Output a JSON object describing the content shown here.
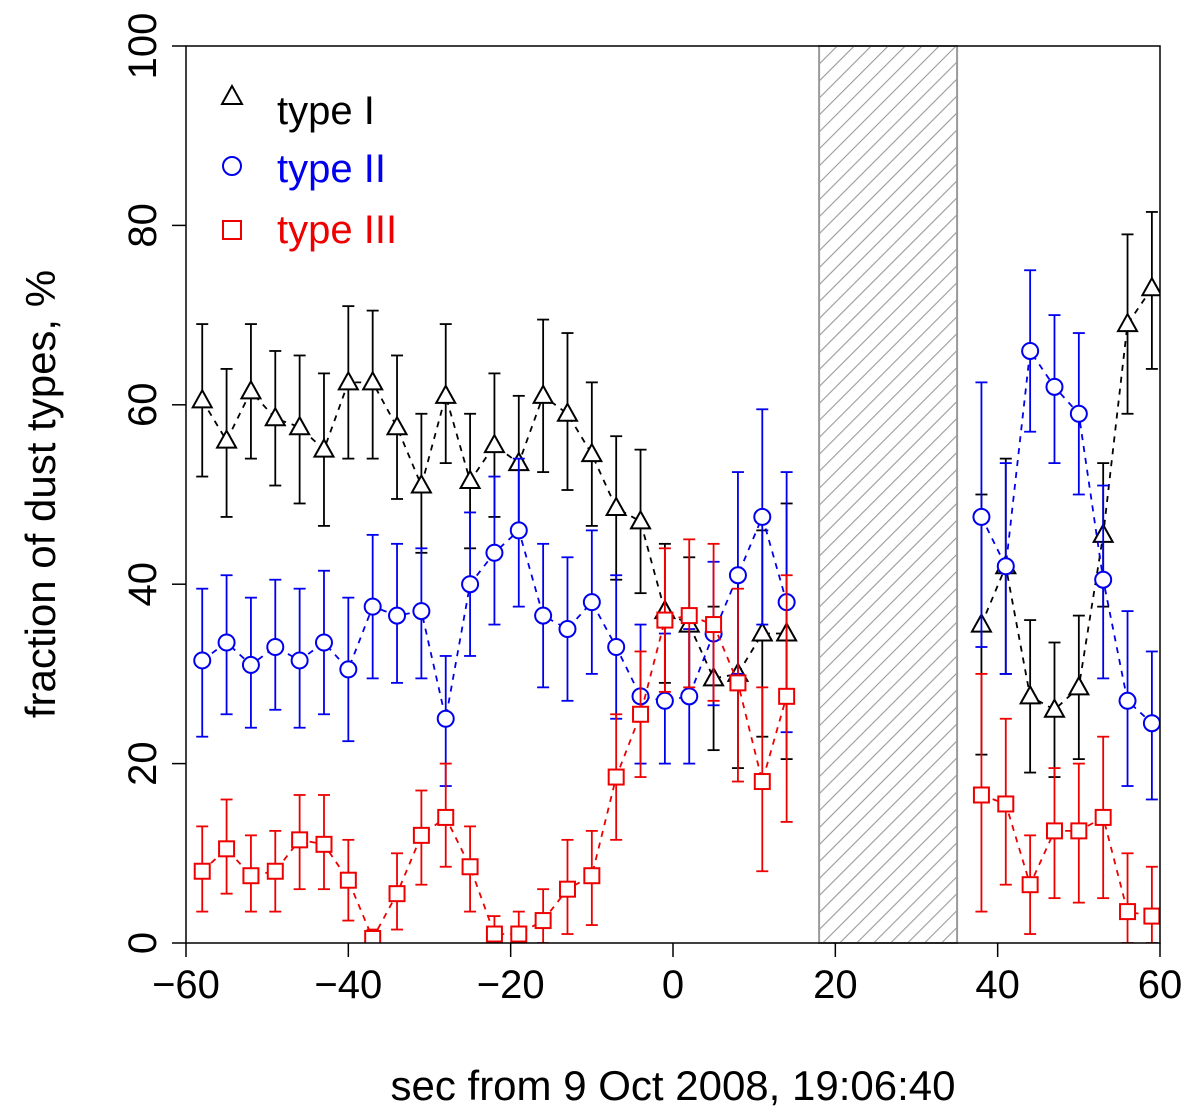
{
  "chart_data": {
    "type": "line",
    "title": "",
    "xlabel": "sec from 9 Oct 2008, 19:06:40",
    "ylabel": "fraction of dust types, %",
    "xlim": [
      -60,
      60
    ],
    "ylim": [
      0,
      100
    ],
    "xticks": [
      -60,
      -40,
      -20,
      0,
      20,
      40,
      60
    ],
    "xtick_labels": [
      "−60",
      "−40",
      "−20",
      "0",
      "20",
      "40",
      "60"
    ],
    "yticks": [
      0,
      20,
      40,
      60,
      80,
      100
    ],
    "ytick_labels": [
      "0",
      "20",
      "40",
      "60",
      "80",
      "100"
    ],
    "grid": false,
    "legend_position": "top-left",
    "shaded_region": {
      "x": [
        18,
        35
      ],
      "pattern": "diagonal-hatch"
    },
    "series": [
      {
        "name": "type I",
        "color": "#000000",
        "marker": "triangle",
        "line_style": "dashed",
        "points": [
          {
            "x": -58,
            "y": 60.5,
            "lo": 52.0,
            "hi": 69.0
          },
          {
            "x": -55,
            "y": 56.0,
            "lo": 47.5,
            "hi": 64.0
          },
          {
            "x": -52,
            "y": 61.5,
            "lo": 54.0,
            "hi": 69.0
          },
          {
            "x": -49,
            "y": 58.5,
            "lo": 51.0,
            "hi": 66.0
          },
          {
            "x": -46,
            "y": 57.5,
            "lo": 49.0,
            "hi": 65.5
          },
          {
            "x": -43,
            "y": 55.0,
            "lo": 46.5,
            "hi": 63.5
          },
          {
            "x": -40,
            "y": 62.5,
            "lo": 54.0,
            "hi": 71.0
          },
          {
            "x": -37,
            "y": 62.5,
            "lo": 54.0,
            "hi": 70.5
          },
          {
            "x": -34,
            "y": 57.5,
            "lo": 49.5,
            "hi": 65.5
          },
          {
            "x": -31,
            "y": 51.0,
            "lo": 43.5,
            "hi": 59.0
          },
          {
            "x": -28,
            "y": 61.0,
            "lo": 53.5,
            "hi": 69.0
          },
          {
            "x": -25,
            "y": 51.5,
            "lo": 44.0,
            "hi": 59.0
          },
          {
            "x": -22,
            "y": 55.5,
            "lo": 47.5,
            "hi": 63.5
          },
          {
            "x": -19,
            "y": 53.5,
            "lo": 45.5,
            "hi": 61.0
          },
          {
            "x": -16,
            "y": 61.0,
            "lo": 52.5,
            "hi": 69.5
          },
          {
            "x": -13,
            "y": 59.0,
            "lo": 50.5,
            "hi": 68.0
          },
          {
            "x": -10,
            "y": 54.5,
            "lo": 46.5,
            "hi": 62.5
          },
          {
            "x": -7,
            "y": 48.5,
            "lo": 40.5,
            "hi": 56.5
          },
          {
            "x": -4,
            "y": 47.0,
            "lo": 39.0,
            "hi": 55.0
          },
          {
            "x": -1,
            "y": 37.0,
            "lo": 29.0,
            "hi": 44.5
          },
          {
            "x": 2,
            "y": 35.5,
            "lo": 28.0,
            "hi": 43.0
          },
          {
            "x": 5,
            "y": 29.5,
            "lo": 21.5,
            "hi": 37.5
          },
          {
            "x": 8,
            "y": 30.0,
            "lo": 19.5,
            "hi": 40.5
          },
          {
            "x": 11,
            "y": 34.5,
            "lo": 23.0,
            "hi": 46.0
          },
          {
            "x": 14,
            "y": 34.5,
            "lo": 20.5,
            "hi": 49.0
          },
          {
            "x": 38,
            "y": 35.5,
            "lo": 21.0,
            "hi": 50.0
          },
          {
            "x": 41,
            "y": 42.0,
            "lo": 30.0,
            "hi": 54.0
          },
          {
            "x": 44,
            "y": 27.5,
            "lo": 19.0,
            "hi": 36.0
          },
          {
            "x": 47,
            "y": 26.0,
            "lo": 18.5,
            "hi": 33.5
          },
          {
            "x": 50,
            "y": 28.5,
            "lo": 20.5,
            "hi": 36.5
          },
          {
            "x": 53,
            "y": 45.5,
            "lo": 37.5,
            "hi": 53.5
          },
          {
            "x": 56,
            "y": 69.0,
            "lo": 59.0,
            "hi": 79.0
          },
          {
            "x": 59,
            "y": 73.0,
            "lo": 64.0,
            "hi": 81.5
          }
        ]
      },
      {
        "name": "type II",
        "color": "#0000ee",
        "marker": "circle",
        "line_style": "dashed",
        "points": [
          {
            "x": -58,
            "y": 31.5,
            "lo": 23.0,
            "hi": 39.5
          },
          {
            "x": -55,
            "y": 33.5,
            "lo": 25.5,
            "hi": 41.0
          },
          {
            "x": -52,
            "y": 31.0,
            "lo": 24.0,
            "hi": 38.5
          },
          {
            "x": -49,
            "y": 33.0,
            "lo": 26.0,
            "hi": 40.5
          },
          {
            "x": -46,
            "y": 31.5,
            "lo": 24.0,
            "hi": 39.5
          },
          {
            "x": -43,
            "y": 33.5,
            "lo": 25.5,
            "hi": 41.5
          },
          {
            "x": -40,
            "y": 30.5,
            "lo": 22.5,
            "hi": 38.5
          },
          {
            "x": -37,
            "y": 37.5,
            "lo": 29.5,
            "hi": 45.5
          },
          {
            "x": -34,
            "y": 36.5,
            "lo": 29.0,
            "hi": 44.5
          },
          {
            "x": -31,
            "y": 37.0,
            "lo": 29.5,
            "hi": 44.0
          },
          {
            "x": -28,
            "y": 25.0,
            "lo": 17.5,
            "hi": 32.0
          },
          {
            "x": -25,
            "y": 40.0,
            "lo": 32.0,
            "hi": 48.0
          },
          {
            "x": -22,
            "y": 43.5,
            "lo": 35.5,
            "hi": 52.0
          },
          {
            "x": -19,
            "y": 46.0,
            "lo": 37.5,
            "hi": 54.0
          },
          {
            "x": -16,
            "y": 36.5,
            "lo": 28.5,
            "hi": 44.5
          },
          {
            "x": -13,
            "y": 35.0,
            "lo": 27.0,
            "hi": 43.0
          },
          {
            "x": -10,
            "y": 38.0,
            "lo": 30.0,
            "hi": 46.0
          },
          {
            "x": -7,
            "y": 33.0,
            "lo": 25.0,
            "hi": 41.0
          },
          {
            "x": -4,
            "y": 27.5,
            "lo": 20.0,
            "hi": 35.5
          },
          {
            "x": -1,
            "y": 27.0,
            "lo": 20.0,
            "hi": 34.5
          },
          {
            "x": 2,
            "y": 27.5,
            "lo": 20.0,
            "hi": 35.0
          },
          {
            "x": 5,
            "y": 34.5,
            "lo": 26.5,
            "hi": 42.5
          },
          {
            "x": 8,
            "y": 41.0,
            "lo": 30.0,
            "hi": 52.5
          },
          {
            "x": 11,
            "y": 47.5,
            "lo": 35.5,
            "hi": 59.5
          },
          {
            "x": 14,
            "y": 38.0,
            "lo": 23.5,
            "hi": 52.5
          },
          {
            "x": 38,
            "y": 47.5,
            "lo": 33.0,
            "hi": 62.5
          },
          {
            "x": 41,
            "y": 42.0,
            "lo": 30.0,
            "hi": 53.5
          },
          {
            "x": 44,
            "y": 66.0,
            "lo": 57.0,
            "hi": 75.0
          },
          {
            "x": 47,
            "y": 62.0,
            "lo": 53.5,
            "hi": 70.0
          },
          {
            "x": 50,
            "y": 59.0,
            "lo": 50.0,
            "hi": 68.0
          },
          {
            "x": 53,
            "y": 40.5,
            "lo": 29.5,
            "hi": 51.0
          },
          {
            "x": 56,
            "y": 27.0,
            "lo": 17.5,
            "hi": 37.0
          },
          {
            "x": 59,
            "y": 24.5,
            "lo": 16.0,
            "hi": 32.5
          }
        ]
      },
      {
        "name": "type III",
        "color": "#ee0000",
        "marker": "square",
        "line_style": "dashed",
        "points": [
          {
            "x": -58,
            "y": 8.0,
            "lo": 3.5,
            "hi": 13.0
          },
          {
            "x": -55,
            "y": 10.5,
            "lo": 5.5,
            "hi": 16.0
          },
          {
            "x": -52,
            "y": 7.5,
            "lo": 3.5,
            "hi": 12.0
          },
          {
            "x": -49,
            "y": 8.0,
            "lo": 3.5,
            "hi": 12.5
          },
          {
            "x": -46,
            "y": 11.5,
            "lo": 6.0,
            "hi": 16.5
          },
          {
            "x": -43,
            "y": 11.0,
            "lo": 6.0,
            "hi": 16.5
          },
          {
            "x": -40,
            "y": 7.0,
            "lo": 2.5,
            "hi": 11.5
          },
          {
            "x": -37,
            "y": 0.5,
            "lo": 0.0,
            "hi": 1.5
          },
          {
            "x": -34,
            "y": 5.5,
            "lo": 1.5,
            "hi": 10.0
          },
          {
            "x": -31,
            "y": 12.0,
            "lo": 6.5,
            "hi": 17.0
          },
          {
            "x": -28,
            "y": 14.0,
            "lo": 8.5,
            "hi": 20.0
          },
          {
            "x": -25,
            "y": 8.5,
            "lo": 3.5,
            "hi": 13.0
          },
          {
            "x": -22,
            "y": 1.0,
            "lo": 0.0,
            "hi": 3.0
          },
          {
            "x": -19,
            "y": 1.0,
            "lo": 0.0,
            "hi": 3.5
          },
          {
            "x": -16,
            "y": 2.5,
            "lo": 0.0,
            "hi": 6.0
          },
          {
            "x": -13,
            "y": 6.0,
            "lo": 1.0,
            "hi": 11.5
          },
          {
            "x": -10,
            "y": 7.5,
            "lo": 2.0,
            "hi": 12.5
          },
          {
            "x": -7,
            "y": 18.5,
            "lo": 11.5,
            "hi": 25.5
          },
          {
            "x": -4,
            "y": 25.5,
            "lo": 18.5,
            "hi": 32.5
          },
          {
            "x": -1,
            "y": 36.0,
            "lo": 28.0,
            "hi": 44.0
          },
          {
            "x": 2,
            "y": 36.5,
            "lo": 28.5,
            "hi": 45.0
          },
          {
            "x": 5,
            "y": 35.5,
            "lo": 27.0,
            "hi": 44.5
          },
          {
            "x": 8,
            "y": 29.0,
            "lo": 18.0,
            "hi": 39.5
          },
          {
            "x": 11,
            "y": 18.0,
            "lo": 8.0,
            "hi": 28.5
          },
          {
            "x": 14,
            "y": 27.5,
            "lo": 13.5,
            "hi": 41.0
          },
          {
            "x": 38,
            "y": 16.5,
            "lo": 3.5,
            "hi": 30.0
          },
          {
            "x": 41,
            "y": 15.5,
            "lo": 6.5,
            "hi": 25.0
          },
          {
            "x": 44,
            "y": 6.5,
            "lo": 1.0,
            "hi": 12.0
          },
          {
            "x": 47,
            "y": 12.5,
            "lo": 5.0,
            "hi": 19.5
          },
          {
            "x": 50,
            "y": 12.5,
            "lo": 4.5,
            "hi": 20.0
          },
          {
            "x": 53,
            "y": 14.0,
            "lo": 5.0,
            "hi": 23.0
          },
          {
            "x": 56,
            "y": 3.5,
            "lo": 0.0,
            "hi": 10.0
          },
          {
            "x": 59,
            "y": 3.0,
            "lo": 0.0,
            "hi": 8.5
          }
        ]
      }
    ]
  }
}
